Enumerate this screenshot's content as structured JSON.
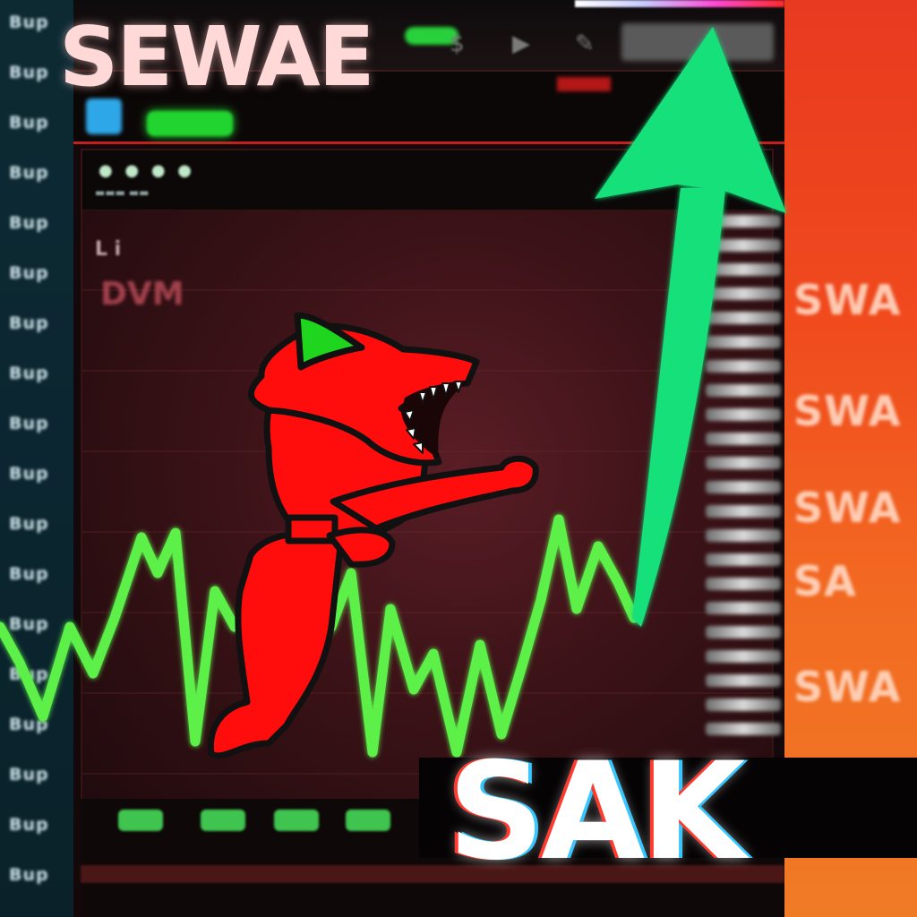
{
  "overlay": {
    "title": "SEWAE",
    "caption": "SAK"
  },
  "left_ticker": {
    "labels": [
      "Bup",
      "Bup",
      "Bup",
      "Bup",
      "Bup",
      "Bup",
      "Bup",
      "Bup",
      "Bup",
      "Bup",
      "Bup",
      "Bup",
      "Bup",
      "Bup",
      "Bup",
      "Bup",
      "Bup",
      "Bup"
    ]
  },
  "panel": {
    "small_label": "L i",
    "dim_label": "DVM"
  },
  "right_panel": {
    "labels": [
      "SWA",
      "SWA",
      "SWA",
      "SA",
      "SWA"
    ]
  },
  "colors": {
    "chart_line": "#5cf04a",
    "arrow": "#17e07a",
    "character": "#ff0d0d",
    "character_ear": "#1fd61f",
    "right_panel": "#f05a22",
    "frame_red": "#d21d1d"
  },
  "icons": {
    "character": "red-creature-icon",
    "arrow": "up-arrow-icon"
  }
}
